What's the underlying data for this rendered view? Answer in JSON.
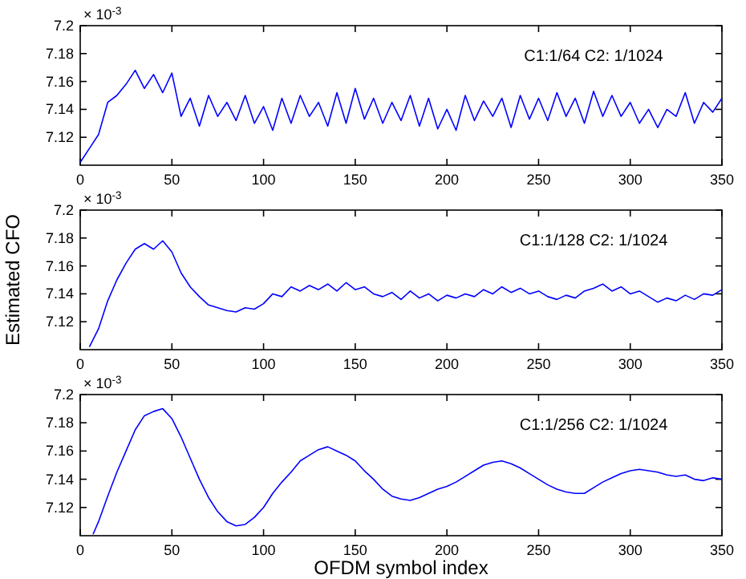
{
  "chart_data": [
    {
      "type": "line",
      "annotations": [
        "× 10$^{-3}$",
        "C1:1/64 C2: 1/1024"
      ],
      "xlim": [
        0,
        350
      ],
      "xticks": [
        0,
        50,
        100,
        150,
        200,
        250,
        300,
        350
      ],
      "ylim": [
        7.1,
        7.2
      ],
      "yticks": [
        7.12,
        7.14,
        7.16,
        7.18,
        7.2
      ],
      "grid": false,
      "line_style": "solid",
      "marker": "none",
      "series": [
        {
          "color": "#0000ff",
          "x": [
            0,
            5,
            10,
            15,
            20,
            25,
            30,
            35,
            40,
            45,
            50,
            55,
            60,
            65,
            70,
            75,
            80,
            85,
            90,
            95,
            100,
            105,
            110,
            115,
            120,
            125,
            130,
            135,
            140,
            145,
            150,
            155,
            160,
            165,
            170,
            175,
            180,
            185,
            190,
            195,
            200,
            205,
            210,
            215,
            220,
            225,
            230,
            235,
            240,
            245,
            250,
            255,
            260,
            265,
            270,
            275,
            280,
            285,
            290,
            295,
            300,
            305,
            310,
            315,
            320,
            325,
            330,
            335,
            340,
            345,
            350
          ],
          "values": [
            7.102,
            7.112,
            7.122,
            7.145,
            7.15,
            7.158,
            7.168,
            7.155,
            7.165,
            7.152,
            7.166,
            7.135,
            7.148,
            7.128,
            7.15,
            7.135,
            7.145,
            7.132,
            7.15,
            7.13,
            7.142,
            7.125,
            7.148,
            7.13,
            7.15,
            7.135,
            7.145,
            7.128,
            7.152,
            7.13,
            7.155,
            7.133,
            7.148,
            7.13,
            7.145,
            7.132,
            7.15,
            7.128,
            7.148,
            7.126,
            7.14,
            7.125,
            7.15,
            7.132,
            7.146,
            7.135,
            7.148,
            7.127,
            7.15,
            7.133,
            7.148,
            7.132,
            7.152,
            7.135,
            7.148,
            7.13,
            7.153,
            7.135,
            7.15,
            7.135,
            7.145,
            7.13,
            7.14,
            7.127,
            7.14,
            7.135,
            7.152,
            7.13,
            7.145,
            7.138,
            7.148
          ]
        }
      ]
    },
    {
      "type": "line",
      "ylabel": "Estimated CFO",
      "annotations": [
        "× 10$^{-3}$",
        "C1:1/128 C2: 1/1024"
      ],
      "xlim": [
        0,
        350
      ],
      "xticks": [
        0,
        50,
        100,
        150,
        200,
        250,
        300,
        350
      ],
      "ylim": [
        7.1,
        7.2
      ],
      "yticks": [
        7.12,
        7.14,
        7.16,
        7.18,
        7.2
      ],
      "grid": false,
      "line_style": "solid",
      "marker": "none",
      "series": [
        {
          "color": "#0000ff",
          "x": [
            5,
            10,
            15,
            20,
            25,
            30,
            35,
            40,
            45,
            50,
            55,
            60,
            65,
            70,
            75,
            80,
            85,
            90,
            95,
            100,
            105,
            110,
            115,
            120,
            125,
            130,
            135,
            140,
            145,
            150,
            155,
            160,
            165,
            170,
            175,
            180,
            185,
            190,
            195,
            200,
            205,
            210,
            215,
            220,
            225,
            230,
            235,
            240,
            245,
            250,
            255,
            260,
            265,
            270,
            275,
            280,
            285,
            290,
            295,
            300,
            305,
            310,
            315,
            320,
            325,
            330,
            335,
            340,
            345,
            350
          ],
          "values": [
            7.102,
            7.115,
            7.135,
            7.15,
            7.162,
            7.172,
            7.176,
            7.172,
            7.178,
            7.17,
            7.155,
            7.145,
            7.138,
            7.132,
            7.13,
            7.128,
            7.127,
            7.13,
            7.129,
            7.133,
            7.14,
            7.138,
            7.145,
            7.142,
            7.146,
            7.143,
            7.147,
            7.142,
            7.148,
            7.143,
            7.145,
            7.14,
            7.138,
            7.141,
            7.136,
            7.142,
            7.137,
            7.14,
            7.135,
            7.139,
            7.137,
            7.14,
            7.138,
            7.143,
            7.14,
            7.145,
            7.141,
            7.144,
            7.14,
            7.142,
            7.138,
            7.136,
            7.139,
            7.137,
            7.142,
            7.144,
            7.147,
            7.142,
            7.145,
            7.14,
            7.142,
            7.138,
            7.134,
            7.137,
            7.135,
            7.139,
            7.136,
            7.14,
            7.139,
            7.143
          ]
        }
      ]
    },
    {
      "type": "line",
      "xlabel": "OFDM symbol index",
      "annotations": [
        "× 10$^{-3}$",
        "C1:1/256 C2: 1/1024"
      ],
      "xlim": [
        0,
        350
      ],
      "xticks": [
        0,
        50,
        100,
        150,
        200,
        250,
        300,
        350
      ],
      "ylim": [
        7.1,
        7.2
      ],
      "yticks": [
        7.12,
        7.14,
        7.16,
        7.18,
        7.2
      ],
      "grid": false,
      "line_style": "solid",
      "marker": "none",
      "series": [
        {
          "color": "#0000ff",
          "x": [
            7,
            10,
            15,
            20,
            25,
            30,
            35,
            40,
            45,
            50,
            55,
            60,
            65,
            70,
            75,
            80,
            85,
            90,
            95,
            100,
            105,
            110,
            115,
            120,
            125,
            130,
            135,
            140,
            145,
            150,
            155,
            160,
            165,
            170,
            175,
            180,
            185,
            190,
            195,
            200,
            205,
            210,
            215,
            220,
            225,
            230,
            235,
            240,
            245,
            250,
            255,
            260,
            265,
            270,
            275,
            280,
            285,
            290,
            295,
            300,
            305,
            310,
            315,
            320,
            325,
            330,
            335,
            340,
            345,
            350
          ],
          "values": [
            7.101,
            7.11,
            7.128,
            7.145,
            7.16,
            7.175,
            7.185,
            7.188,
            7.19,
            7.183,
            7.17,
            7.155,
            7.14,
            7.127,
            7.117,
            7.11,
            7.107,
            7.108,
            7.113,
            7.12,
            7.13,
            7.138,
            7.145,
            7.153,
            7.157,
            7.161,
            7.163,
            7.16,
            7.157,
            7.153,
            7.146,
            7.14,
            7.133,
            7.128,
            7.126,
            7.125,
            7.127,
            7.13,
            7.133,
            7.135,
            7.138,
            7.142,
            7.146,
            7.15,
            7.152,
            7.153,
            7.151,
            7.148,
            7.144,
            7.14,
            7.136,
            7.133,
            7.131,
            7.13,
            7.13,
            7.134,
            7.138,
            7.141,
            7.144,
            7.146,
            7.147,
            7.146,
            7.145,
            7.143,
            7.142,
            7.143,
            7.14,
            7.139,
            7.141,
            7.14
          ]
        }
      ]
    }
  ]
}
